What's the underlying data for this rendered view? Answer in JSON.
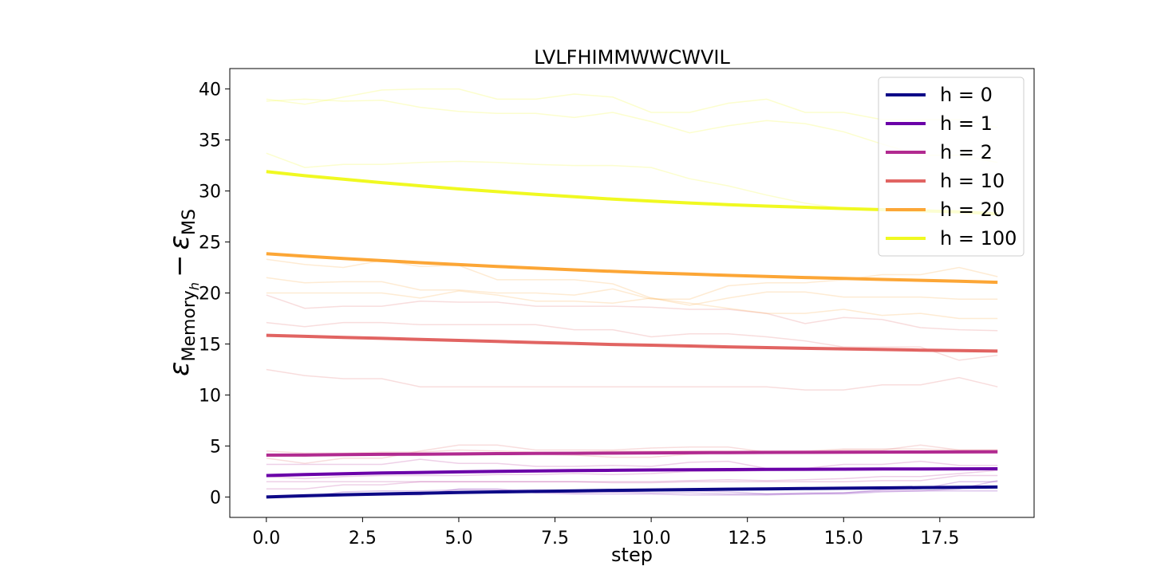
{
  "chart_data": {
    "type": "line",
    "title": "LVLFHIMMWWCWVIL",
    "xlabel": "step",
    "ylabel": "ε_{Memory_h} − ε_MS",
    "ylabel_parts": {
      "eps": "ε",
      "sub1": "Memory",
      "sub1_sub": "h",
      "minus": "−",
      "eps2": "ε",
      "sub2": "MS"
    },
    "xlim": [
      -0.95,
      19.95
    ],
    "ylim": [
      -2.0,
      42.0
    ],
    "xticks": [
      0.0,
      2.5,
      5.0,
      7.5,
      10.0,
      12.5,
      15.0,
      17.5
    ],
    "xtick_labels": [
      "0.0",
      "2.5",
      "5.0",
      "7.5",
      "10.0",
      "12.5",
      "15.0",
      "17.5"
    ],
    "yticks": [
      0,
      5,
      10,
      15,
      20,
      25,
      30,
      35,
      40
    ],
    "ytick_labels": [
      "0",
      "5",
      "10",
      "15",
      "20",
      "25",
      "30",
      "35",
      "40"
    ],
    "grid": false,
    "legend_position": "top-right",
    "x": [
      0,
      1,
      2,
      3,
      4,
      5,
      6,
      7,
      8,
      9,
      10,
      11,
      12,
      13,
      14,
      15,
      16,
      17,
      18,
      19
    ],
    "series": [
      {
        "name": "h = 0",
        "color": "#0d0887",
        "values": [
          0.0,
          0.12,
          0.22,
          0.3,
          0.37,
          0.44,
          0.5,
          0.55,
          0.6,
          0.65,
          0.69,
          0.73,
          0.77,
          0.8,
          0.83,
          0.86,
          0.89,
          0.92,
          0.95,
          0.98
        ]
      },
      {
        "name": "h = 1",
        "color": "#6a00a8",
        "values": [
          2.1,
          2.2,
          2.28,
          2.35,
          2.41,
          2.46,
          2.51,
          2.55,
          2.59,
          2.62,
          2.65,
          2.67,
          2.69,
          2.71,
          2.72,
          2.73,
          2.74,
          2.75,
          2.76,
          2.77
        ]
      },
      {
        "name": "h = 2",
        "color": "#b12a90",
        "values": [
          4.1,
          4.12,
          4.15,
          4.18,
          4.2,
          4.22,
          4.25,
          4.27,
          4.28,
          4.3,
          4.32,
          4.34,
          4.35,
          4.37,
          4.38,
          4.39,
          4.4,
          4.41,
          4.42,
          4.43
        ]
      },
      {
        "name": "h = 10",
        "color": "#e16462",
        "values": [
          15.85,
          15.75,
          15.65,
          15.55,
          15.45,
          15.35,
          15.25,
          15.15,
          15.05,
          14.95,
          14.88,
          14.8,
          14.72,
          14.65,
          14.58,
          14.52,
          14.46,
          14.4,
          14.35,
          14.3
        ]
      },
      {
        "name": "h = 20",
        "color": "#fca636",
        "values": [
          23.85,
          23.6,
          23.38,
          23.17,
          22.97,
          22.78,
          22.6,
          22.43,
          22.27,
          22.12,
          21.98,
          21.85,
          21.73,
          21.62,
          21.52,
          21.42,
          21.33,
          21.24,
          21.15,
          21.05
        ]
      },
      {
        "name": "h = 100",
        "color": "#f0f921",
        "values": [
          31.9,
          31.5,
          31.15,
          30.82,
          30.5,
          30.2,
          29.93,
          29.67,
          29.43,
          29.2,
          29.0,
          28.82,
          28.66,
          28.52,
          28.4,
          28.28,
          28.17,
          28.06,
          27.95,
          27.75
        ]
      }
    ],
    "background_traces": [
      {
        "color": "#6a00a8",
        "values": [
          0,
          0,
          0.5,
          0.6,
          0.6,
          0.7,
          0.7,
          0.7,
          0.6,
          0.5,
          0.4,
          0.4,
          0.3,
          0.3,
          0.4,
          0.4,
          0.6,
          0.6,
          0.8,
          1.6
        ]
      },
      {
        "color": "#6a00a8",
        "values": [
          0,
          0.1,
          0.2,
          0.2,
          0.2,
          0.8,
          0.8,
          0.4,
          0.3,
          0.3,
          0.3,
          0.2,
          0.2,
          0.2,
          0.3,
          0.4,
          0.7,
          0.8,
          1.5,
          1.5
        ]
      },
      {
        "color": "#6a00a8",
        "values": [
          0,
          0.1,
          0.2,
          0.3,
          0.4,
          0.5,
          0.5,
          0.5,
          0.4,
          0.5,
          0.6,
          0.6,
          0.5,
          0.3,
          0.3,
          0.3,
          0.5,
          0.6,
          0.6,
          0.6
        ]
      },
      {
        "color": "#b12a90",
        "values": [
          0.8,
          0.8,
          1.2,
          1.2,
          1.5,
          1.5,
          1.5,
          1.5,
          1.5,
          1.5,
          1.5,
          1.6,
          1.7,
          1.6,
          1.7,
          1.8,
          2.0,
          2.0,
          2.3,
          2.6
        ]
      },
      {
        "color": "#b12a90",
        "values": [
          1.5,
          1.5,
          1.5,
          1.5,
          1.5,
          1.5,
          1.5,
          1.5,
          1.5,
          1.4,
          1.4,
          1.5,
          1.5,
          1.5,
          1.5,
          1.5,
          1.6,
          1.6,
          2.1,
          2.1
        ]
      },
      {
        "color": "#b12a90",
        "values": [
          2.0,
          1.8,
          2.0,
          2.1,
          2.1,
          2.1,
          2.2,
          2.2,
          2.3,
          2.2,
          2.3,
          2.5,
          2.5,
          2.6,
          2.6,
          2.7,
          2.8,
          2.8,
          2.8,
          2.8
        ]
      },
      {
        "color": "#b12a90",
        "values": [
          3.2,
          3.2,
          3.2,
          3.2,
          3.7,
          3.3,
          3.3,
          3.0,
          3.0,
          3.1,
          3.0,
          3.4,
          3.5,
          2.8,
          2.8,
          3.2,
          3.2,
          3.5,
          3.1,
          3.1
        ]
      },
      {
        "color": "#e16462",
        "values": [
          3.8,
          3.3,
          3.8,
          3.8,
          4.5,
          5.1,
          5.1,
          4.6,
          4.6,
          4.6,
          4.8,
          4.9,
          4.9,
          4.4,
          4.4,
          4.6,
          4.6,
          5.1,
          4.6,
          4.6
        ]
      },
      {
        "color": "#e16462",
        "values": [
          4.2,
          4.0,
          4.2,
          4.3,
          4.2,
          4.1,
          4.2,
          4.2,
          4.1,
          3.9,
          3.9,
          4.2,
          4.3,
          4.3,
          4.3,
          4.5,
          4.5,
          4.5,
          4.5,
          4.5
        ]
      },
      {
        "color": "#e16462",
        "values": [
          4.5,
          4.3,
          4.3,
          4.4,
          4.4,
          4.6,
          4.5,
          4.4,
          4.4,
          4.5,
          4.5,
          4.5,
          4.5,
          4.5,
          4.5,
          4.7,
          4.7,
          4.7,
          4.6,
          4.6
        ]
      },
      {
        "color": "#e16462",
        "values": [
          12.5,
          11.9,
          11.6,
          11.6,
          10.8,
          10.8,
          10.8,
          10.8,
          10.8,
          10.8,
          10.8,
          10.8,
          10.8,
          10.8,
          10.5,
          10.5,
          11.0,
          11.0,
          11.7,
          10.8
        ]
      },
      {
        "color": "#e16462",
        "values": [
          17.1,
          16.7,
          17.1,
          17.1,
          16.9,
          16.9,
          16.9,
          16.9,
          16.4,
          16.4,
          15.7,
          16.0,
          16.0,
          15.7,
          15.3,
          14.7,
          14.7,
          14.7,
          13.4,
          13.9
        ]
      },
      {
        "color": "#e16462",
        "values": [
          19.8,
          18.5,
          18.7,
          18.7,
          19.2,
          19.1,
          19.1,
          18.7,
          18.7,
          18.7,
          18.6,
          18.4,
          18.4,
          18.0,
          17.0,
          17.6,
          17.4,
          16.6,
          16.4,
          16.3
        ]
      },
      {
        "color": "#fca636",
        "values": [
          20.0,
          20.0,
          20.0,
          20.0,
          19.5,
          20.2,
          19.8,
          19.2,
          19.2,
          19.0,
          19.5,
          19.0,
          18.5,
          18.0,
          18.0,
          18.4,
          17.8,
          18.0,
          17.5,
          17.5
        ]
      },
      {
        "color": "#fca636",
        "values": [
          21.5,
          21.0,
          21.1,
          21.1,
          20.3,
          20.3,
          20.0,
          20.0,
          19.8,
          20.4,
          19.4,
          19.4,
          20.7,
          21.0,
          21.0,
          21.3,
          21.8,
          21.8,
          22.5,
          21.6
        ]
      },
      {
        "color": "#fca636",
        "values": [
          23.3,
          22.8,
          22.5,
          23.2,
          22.6,
          22.7,
          21.3,
          21.3,
          21.3,
          20.9,
          19.5,
          18.8,
          19.5,
          20.1,
          20.1,
          19.6,
          19.6,
          19.6,
          19.4,
          19.4
        ]
      },
      {
        "color": "#f0f921",
        "values": [
          33.7,
          32.3,
          32.6,
          32.6,
          32.8,
          32.9,
          32.8,
          32.6,
          32.5,
          32.5,
          32.3,
          31.2,
          30.5,
          29.6,
          28.8,
          28.3,
          28.2,
          28.0,
          27.9,
          27.6
        ]
      },
      {
        "color": "#f0f921",
        "values": [
          39.0,
          38.5,
          39.2,
          39.9,
          40.0,
          40.0,
          39.0,
          39.0,
          39.5,
          39.2,
          37.7,
          37.7,
          38.6,
          39.0,
          37.7,
          37.7,
          37.0,
          37.0,
          37.0,
          36.2
        ]
      },
      {
        "color": "#f0f921",
        "values": [
          38.8,
          39.0,
          38.8,
          38.9,
          38.2,
          37.8,
          37.6,
          37.6,
          37.2,
          37.7,
          36.8,
          35.7,
          36.4,
          36.9,
          36.6,
          35.8,
          34.6,
          33.5,
          33.5,
          32.8
        ]
      }
    ]
  }
}
